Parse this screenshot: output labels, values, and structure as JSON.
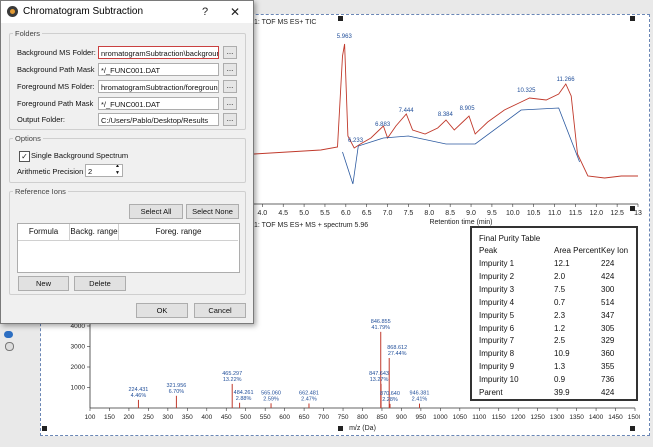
{
  "dialog": {
    "title": "Chromatogram Subtraction",
    "help": "?",
    "close": "✕",
    "folders_legend": "Folders",
    "fields": [
      {
        "label": "Background MS Folder:",
        "value": "nromatogramSubtraction\\background\\"
      },
      {
        "label": "Background Path Mask",
        "value": "*/_FUNC001.DAT"
      },
      {
        "label": "Foreground MS Folder:",
        "value": "hromatogramSubtraction/foreground"
      },
      {
        "label": "Foreground Path Mask",
        "value": "*/_FUNC001.DAT"
      },
      {
        "label": "Output Folder:",
        "value": "C:/Users/Pablo/Desktop/Results"
      }
    ],
    "browse": "...",
    "options_legend": "Options",
    "single_bg_label": "Single Background Spectrum",
    "single_bg_check": "✓",
    "precision_label": "Arithmetic Precision",
    "precision_value": "2",
    "ref_legend": "Reference Ions",
    "select_all": "Select All",
    "select_none": "Select None",
    "columns": [
      "Formula",
      "Backg. range",
      "Foreg. range"
    ],
    "new": "New",
    "delete": "Delete",
    "ok": "OK",
    "cancel": "Cancel"
  },
  "tic_title": "1: TOF MS ES+ TIC",
  "ms_title": "1: TOF MS ES+ MS + spectrum 5.96",
  "chart_data": [
    {
      "type": "line",
      "title": "1: TOF MS ES+ TIC",
      "xlabel": "Retention time (min)",
      "xlim": [
        3.8,
        13.0
      ],
      "xticks": [
        "4.0",
        "4.5",
        "5.0",
        "5.5",
        "6.0",
        "6.5",
        "7.0",
        "7.5",
        "8.0",
        "8.5",
        "9.0",
        "9.5",
        "10.0",
        "10.5",
        "11.0",
        "11.5",
        "12.0",
        "12.5",
        "13"
      ],
      "peak_labels": [
        {
          "x": 5.963,
          "label": "5.963"
        },
        {
          "x": 6.233,
          "label": "6.233"
        },
        {
          "x": 6.883,
          "label": "6.883"
        },
        {
          "x": 7.444,
          "label": "7.444"
        },
        {
          "x": 8.384,
          "label": "8.384"
        },
        {
          "x": 8.905,
          "label": "8.905"
        },
        {
          "x": 10.325,
          "label": "10.325"
        },
        {
          "x": 11.266,
          "label": "11.266"
        }
      ]
    },
    {
      "type": "bar",
      "title": "1: TOF MS ES+ MS + spectrum 5.96",
      "xlabel": "m/z (Da)",
      "xlim": [
        100,
        1500
      ],
      "ylim": [
        0,
        4000
      ],
      "yticks": [
        "1000",
        "2000",
        "3000",
        "4000"
      ],
      "xticks": [
        "100",
        "150",
        "200",
        "250",
        "300",
        "350",
        "400",
        "450",
        "500",
        "550",
        "600",
        "650",
        "700",
        "750",
        "800",
        "850",
        "900",
        "950",
        "1000",
        "1050",
        "1100",
        "1150",
        "1200",
        "1250",
        "1300",
        "1350",
        "1400",
        "1450",
        "1500"
      ],
      "peaks": [
        {
          "mz": 224.431,
          "label": "224.431",
          "pct": "4.46%"
        },
        {
          "mz": 321.956,
          "label": "321.956",
          "pct": "6.70%"
        },
        {
          "mz": 465.297,
          "label": "465.297",
          "pct": "13.22%"
        },
        {
          "mz": 484.261,
          "label": "484.261",
          "pct": "2.88%"
        },
        {
          "mz": 565.06,
          "label": "565.060",
          "pct": "2.59%"
        },
        {
          "mz": 662.481,
          "label": "662.481",
          "pct": "2.47%"
        },
        {
          "mz": 846.855,
          "label": "846.855",
          "pct": "41.79%"
        },
        {
          "mz": 847.643,
          "label": "847.643",
          "pct": "13.27%"
        },
        {
          "mz": 868.612,
          "label": "868.612",
          "pct": "27.44%"
        },
        {
          "mz": 870.64,
          "label": "870.640",
          "pct": "2.28%"
        },
        {
          "mz": 946.381,
          "label": "946.381",
          "pct": "2.41%"
        }
      ]
    }
  ],
  "purity": {
    "title": "Final Purity Table",
    "headers": [
      "Peak",
      "Area Percent",
      "Key Ion"
    ],
    "rows": [
      [
        "Impurity 1",
        "12.1",
        "224"
      ],
      [
        "Impurity 2",
        "2.0",
        "424"
      ],
      [
        "Impurity 3",
        "7.5",
        "300"
      ],
      [
        "Impurity 4",
        "0.7",
        "514"
      ],
      [
        "Impurity 5",
        "2.3",
        "347"
      ],
      [
        "Impurity 6",
        "1.2",
        "305"
      ],
      [
        "Impurity 7",
        "2.5",
        "329"
      ],
      [
        "Impurity 8",
        "10.9",
        "360"
      ],
      [
        "Impurity 9",
        "1.3",
        "355"
      ],
      [
        "Impurity 10",
        "0.9",
        "736"
      ],
      [
        "Parent",
        "39.9",
        "424"
      ]
    ]
  },
  "colors": {
    "trace": "#c0392b",
    "baseline": "#2c5aa0",
    "accent": "#c94040"
  }
}
